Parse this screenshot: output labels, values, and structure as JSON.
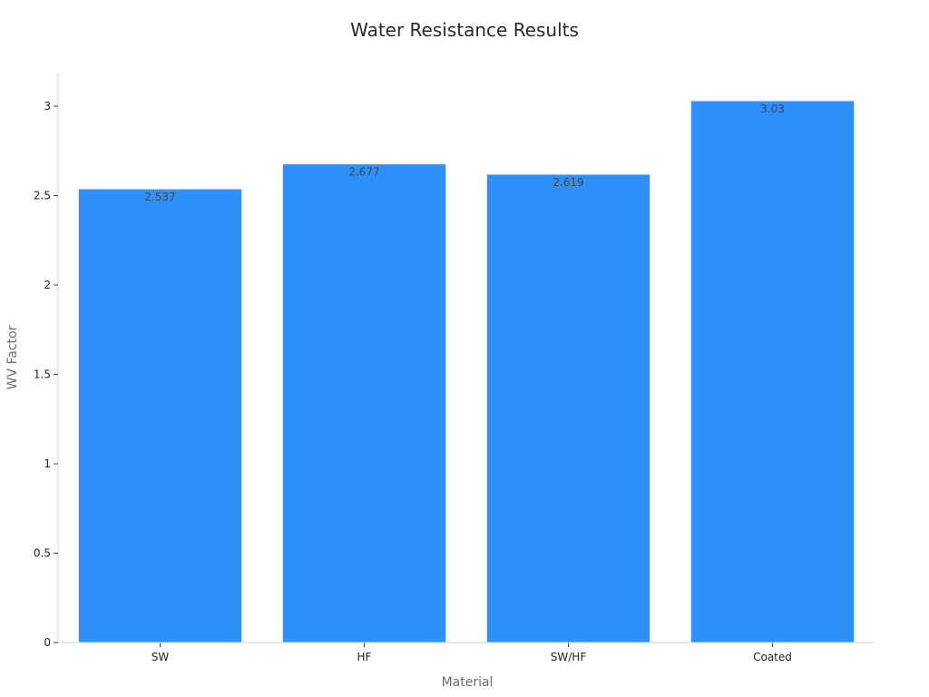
{
  "chart_data": {
    "type": "bar",
    "title": "Water Resistance Results",
    "xlabel": "Material",
    "ylabel": "WV Factor",
    "categories": [
      "SW",
      "HF",
      "SW/HF",
      "Coated"
    ],
    "values": [
      2.537,
      2.677,
      2.619,
      3.03
    ],
    "data_labels": [
      "2.537",
      "2.677",
      "2.619",
      "3.03"
    ],
    "ylim": [
      0,
      3.2
    ],
    "yticks": [
      0,
      0.5,
      1,
      1.5,
      2,
      2.5,
      3
    ],
    "ytick_labels": [
      "0",
      "0.5",
      "1",
      "1.5",
      "2",
      "2.5",
      "3"
    ],
    "grid": false,
    "legend": "none",
    "bar_color": "#2e90fa"
  }
}
